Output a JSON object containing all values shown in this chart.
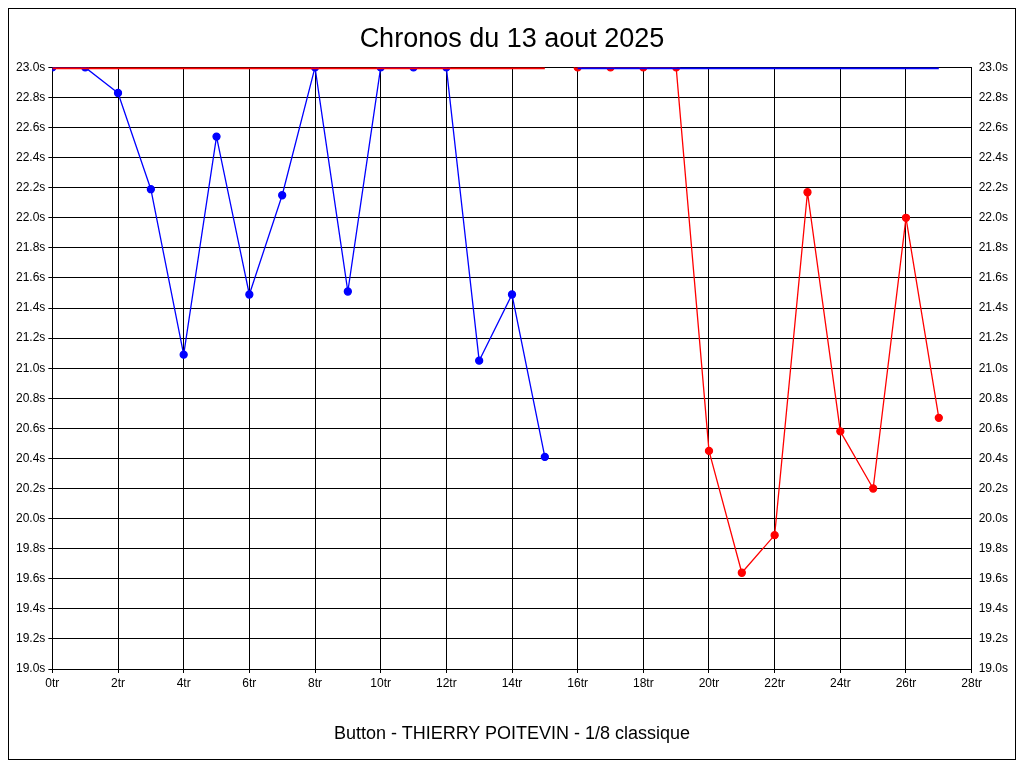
{
  "chart_data": {
    "type": "line",
    "title": "Chronos du 13 aout 2025",
    "xlabel": "Button - THIERRY POITEVIN - 1/8 classique",
    "xlim": [
      0,
      28
    ],
    "xticks": [
      {
        "value": 0,
        "label": "0tr"
      },
      {
        "value": 2,
        "label": "2tr"
      },
      {
        "value": 4,
        "label": "4tr"
      },
      {
        "value": 6,
        "label": "6tr"
      },
      {
        "value": 8,
        "label": "8tr"
      },
      {
        "value": 10,
        "label": "10tr"
      },
      {
        "value": 12,
        "label": "12tr"
      },
      {
        "value": 14,
        "label": "14tr"
      },
      {
        "value": 16,
        "label": "16tr"
      },
      {
        "value": 18,
        "label": "18tr"
      },
      {
        "value": 20,
        "label": "20tr"
      },
      {
        "value": 22,
        "label": "22tr"
      },
      {
        "value": 24,
        "label": "24tr"
      },
      {
        "value": 26,
        "label": "26tr"
      },
      {
        "value": 28,
        "label": "28tr"
      }
    ],
    "ylim": [
      19.0,
      23.0
    ],
    "yticks": [
      {
        "value": 19.0,
        "label": "19.0s"
      },
      {
        "value": 19.2,
        "label": "19.2s"
      },
      {
        "value": 19.4,
        "label": "19.4s"
      },
      {
        "value": 19.6,
        "label": "19.6s"
      },
      {
        "value": 19.8,
        "label": "19.8s"
      },
      {
        "value": 20.0,
        "label": "20.0s"
      },
      {
        "value": 20.2,
        "label": "20.2s"
      },
      {
        "value": 20.4,
        "label": "20.4s"
      },
      {
        "value": 20.6,
        "label": "20.6s"
      },
      {
        "value": 20.8,
        "label": "20.8s"
      },
      {
        "value": 21.0,
        "label": "21.0s"
      },
      {
        "value": 21.2,
        "label": "21.2s"
      },
      {
        "value": 21.4,
        "label": "21.4s"
      },
      {
        "value": 21.6,
        "label": "21.6s"
      },
      {
        "value": 21.8,
        "label": "21.8s"
      },
      {
        "value": 22.0,
        "label": "22.0s"
      },
      {
        "value": 22.2,
        "label": "22.2s"
      },
      {
        "value": 22.4,
        "label": "22.4s"
      },
      {
        "value": 22.6,
        "label": "22.6s"
      },
      {
        "value": 22.8,
        "label": "22.8s"
      },
      {
        "value": 23.0,
        "label": "23.0s"
      }
    ],
    "y2lim": [
      19.0,
      23.0
    ],
    "y2ticks": [
      {
        "value": 19.0,
        "label": "19.0s"
      },
      {
        "value": 19.2,
        "label": "19.2s"
      },
      {
        "value": 19.4,
        "label": "19.4s"
      },
      {
        "value": 19.6,
        "label": "19.6s"
      },
      {
        "value": 19.8,
        "label": "19.8s"
      },
      {
        "value": 20.0,
        "label": "20.0s"
      },
      {
        "value": 20.2,
        "label": "20.2s"
      },
      {
        "value": 20.4,
        "label": "20.4s"
      },
      {
        "value": 20.6,
        "label": "20.6s"
      },
      {
        "value": 20.8,
        "label": "20.8s"
      },
      {
        "value": 21.0,
        "label": "21.0s"
      },
      {
        "value": 21.2,
        "label": "21.2s"
      },
      {
        "value": 21.4,
        "label": "21.4s"
      },
      {
        "value": 21.6,
        "label": "21.6s"
      },
      {
        "value": 21.8,
        "label": "21.8s"
      },
      {
        "value": 22.0,
        "label": "22.0s"
      },
      {
        "value": 22.2,
        "label": "22.2s"
      },
      {
        "value": 22.4,
        "label": "22.4s"
      },
      {
        "value": 22.6,
        "label": "22.6s"
      },
      {
        "value": 22.8,
        "label": "22.8s"
      },
      {
        "value": 23.0,
        "label": "23.0s"
      }
    ],
    "grid": true,
    "legend": false,
    "line_style": "solid",
    "series": [
      {
        "color": "#ff0000",
        "marker": "none",
        "x": [
          0,
          15
        ],
        "values": [
          23.0,
          23.0
        ]
      },
      {
        "color": "#0000ff",
        "marker": "none",
        "x": [
          16,
          27
        ],
        "values": [
          23.0,
          23.0
        ]
      },
      {
        "color": "#0000ff",
        "marker": "circle",
        "x": [
          0,
          1,
          2,
          3,
          4,
          5,
          6,
          7,
          8,
          9,
          10,
          11,
          12,
          13,
          14,
          15
        ],
        "values": [
          23.0,
          23.0,
          22.83,
          22.19,
          21.09,
          22.54,
          21.49,
          22.15,
          23.0,
          21.51,
          23.0,
          23.0,
          23.0,
          21.05,
          21.49,
          20.41
        ]
      },
      {
        "color": "#ff0000",
        "marker": "circle",
        "x": [
          16,
          17,
          18,
          19,
          20,
          21,
          22,
          23,
          24,
          25,
          26,
          27
        ],
        "values": [
          23.0,
          23.0,
          23.0,
          23.0,
          20.45,
          19.64,
          19.89,
          22.17,
          20.58,
          20.2,
          22.0,
          20.67
        ]
      }
    ]
  }
}
